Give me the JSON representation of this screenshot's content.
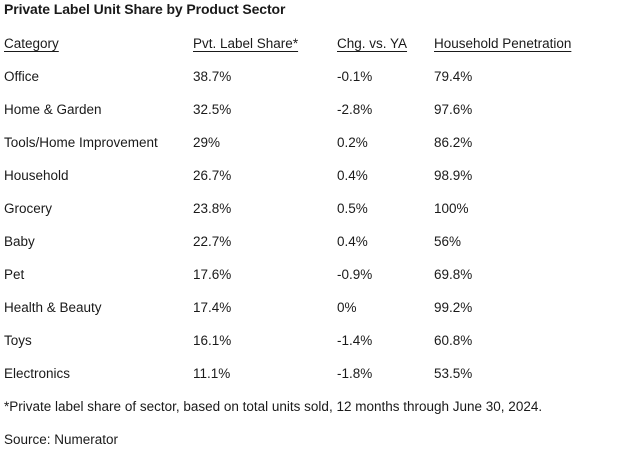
{
  "title": "Private Label Unit Share by Product Sector",
  "chart_data": {
    "type": "table",
    "title": "Private Label Unit Share by Product Sector",
    "columns": [
      "Category",
      "Pvt. Label Share*",
      "Chg. vs. YA",
      "Household Penetration"
    ],
    "rows": [
      [
        "Office",
        "38.7%",
        "-0.1%",
        "79.4%"
      ],
      [
        "Home & Garden",
        "32.5%",
        "-2.8%",
        "97.6%"
      ],
      [
        "Tools/Home Improvement",
        "29%",
        "0.2%",
        "86.2%"
      ],
      [
        "Household",
        "26.7%",
        "0.4%",
        "98.9%"
      ],
      [
        "Grocery",
        "23.8%",
        "0.5%",
        "100%"
      ],
      [
        "Baby",
        "22.7%",
        "0.4%",
        "56%"
      ],
      [
        "Pet",
        "17.6%",
        "-0.9%",
        "69.8%"
      ],
      [
        "Health & Beauty",
        "17.4%",
        "0%",
        "99.2%"
      ],
      [
        "Toys",
        "16.1%",
        "-1.4%",
        "60.8%"
      ],
      [
        "Electronics",
        "11.1%",
        "-1.8%",
        "53.5%"
      ]
    ],
    "footnote": "*Private label share of sector, based on total units sold, 12 months through June 30, 2024.",
    "source": "Source: Numerator",
    "layout": {
      "grid": "off",
      "text_color": "#1a1a1a",
      "background_color": "#ffffff"
    }
  }
}
